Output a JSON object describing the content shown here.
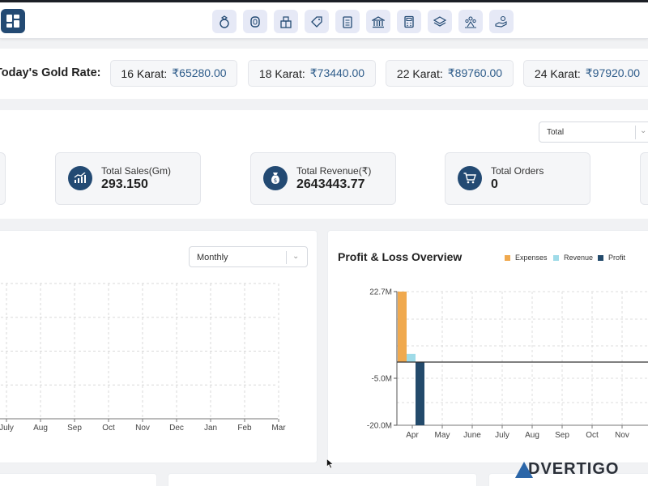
{
  "nav": {
    "icons": [
      "ring-icon",
      "bangle-icon",
      "gift-box-icon",
      "tag-icon",
      "clipboard-icon",
      "bank-icon",
      "calculator-icon",
      "layers-icon",
      "people-icon",
      "hand-coin-icon"
    ]
  },
  "gold_rate": {
    "title": "Today's Gold Rate:",
    "rates": [
      {
        "label": "16 Karat:",
        "value": "₹65280.00"
      },
      {
        "label": "18 Karat:",
        "value": "₹73440.00"
      },
      {
        "label": "22 Karat:",
        "value": "₹89760.00"
      },
      {
        "label": "24 Karat:",
        "value": "₹97920.00"
      }
    ]
  },
  "filter": {
    "selected": "Total"
  },
  "stats": [
    {
      "label": "Total Sales(Gm)",
      "value": "293.150",
      "icon": "bar-chart-icon"
    },
    {
      "label": "Total Revenue(₹)",
      "value": "2643443.77",
      "icon": "money-bag-icon"
    },
    {
      "label": "Total Orders",
      "value": "0",
      "icon": "cart-icon"
    }
  ],
  "sales_chart": {
    "period_selected": "Monthly"
  },
  "profit_loss": {
    "title": "Profit & Loss Overview",
    "legend": [
      "Expenses",
      "Revenue",
      "Profit"
    ]
  },
  "colors": {
    "primary": "#234a73",
    "expenses": "#f0a94e",
    "revenue": "#9fdbe8",
    "profit": "#234a6b",
    "rate_value": "#2e5c8a"
  },
  "chart_data": [
    {
      "type": "line",
      "categories": [
        "July",
        "Aug",
        "Sep",
        "Oct",
        "Nov",
        "Dec",
        "Jan",
        "Feb",
        "Mar"
      ],
      "series": []
    },
    {
      "type": "bar",
      "title": "Profit & Loss Overview",
      "categories": [
        "Apr",
        "May",
        "June",
        "July",
        "Aug",
        "Sep",
        "Oct",
        "Nov"
      ],
      "yticks": [
        "22.7M",
        "-5.0M",
        "-20.0M"
      ],
      "series": [
        {
          "name": "Expenses",
          "values": [
            22.7,
            0,
            0,
            0,
            0,
            0,
            0,
            0
          ]
        },
        {
          "name": "Revenue",
          "values": [
            2.64,
            0,
            0,
            0,
            0,
            0,
            0,
            0
          ]
        },
        {
          "name": "Profit",
          "values": [
            -20.0,
            0,
            0,
            0,
            0,
            0,
            0,
            0
          ]
        }
      ],
      "ylim": [
        -20.0,
        22.7
      ],
      "grid": true,
      "legend": "top-right"
    }
  ],
  "watermark": {
    "text": "DVERTIGO"
  }
}
